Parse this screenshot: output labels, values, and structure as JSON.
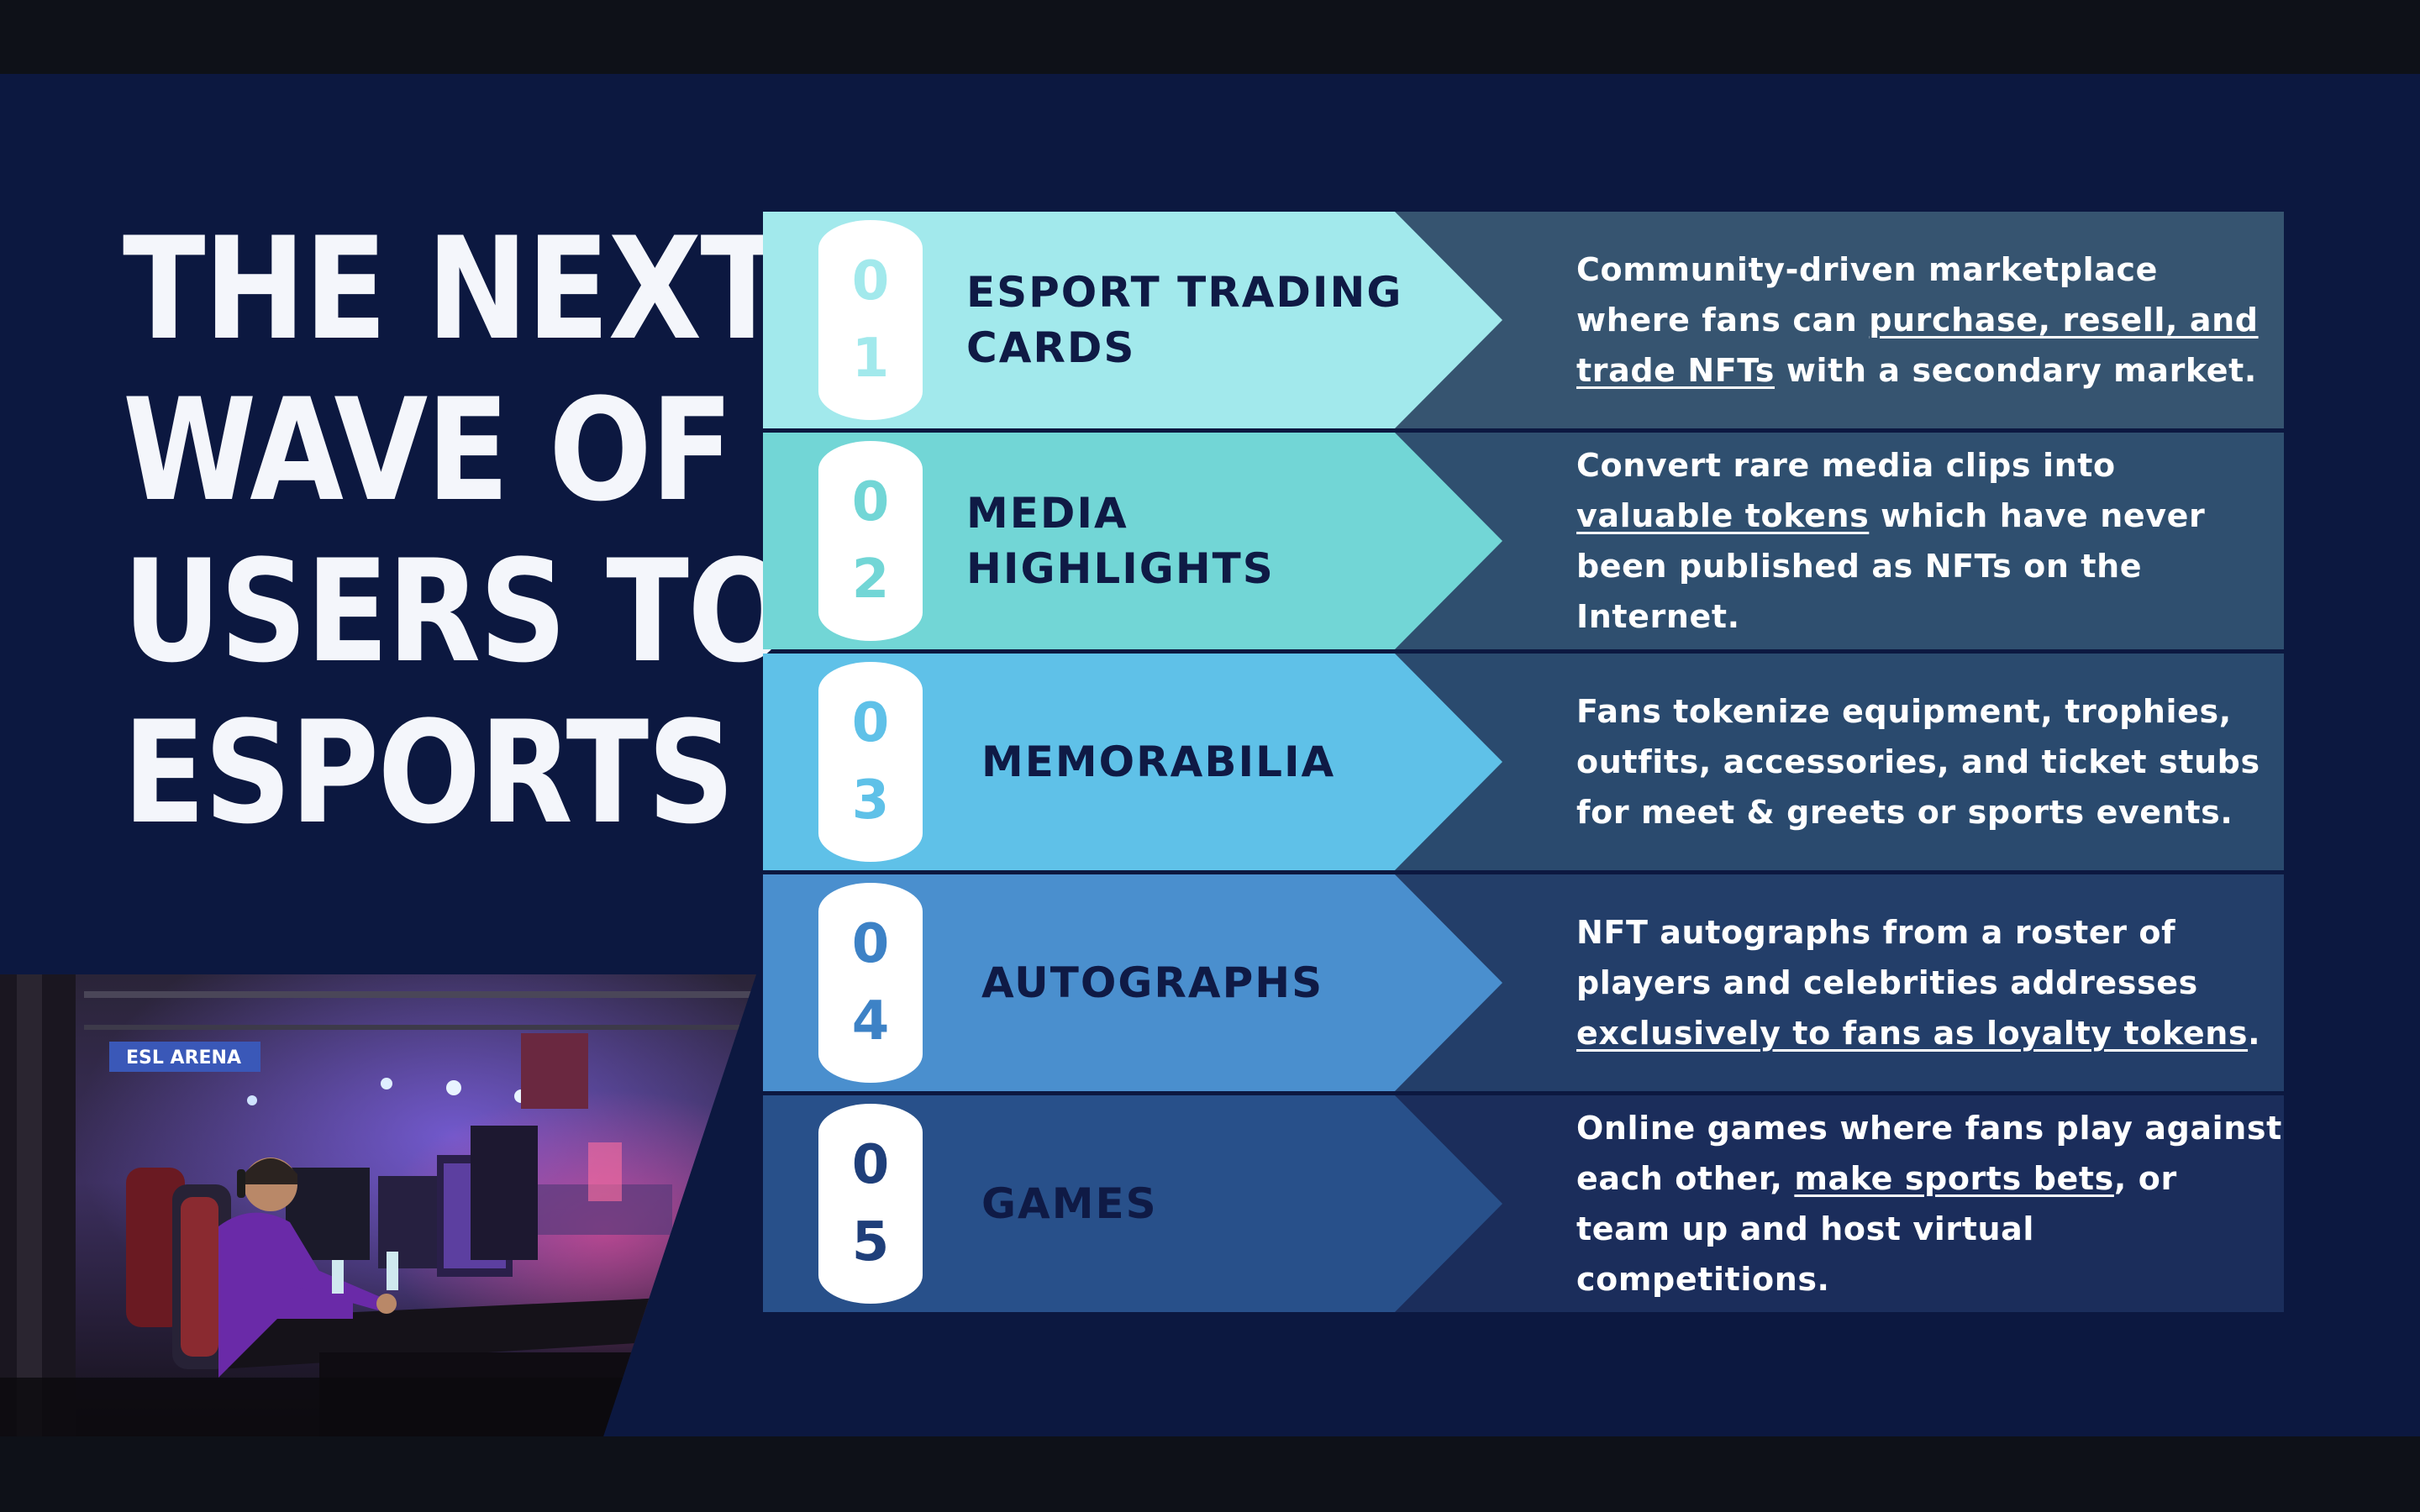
{
  "title_lines": [
    "THE NEXT",
    "WAVE OF",
    "USERS TO",
    "ESPORTS"
  ],
  "colors": {
    "background": "#0c1840",
    "row1_left": "#a2e9ec",
    "row1_right": "#365470",
    "row1_num": "#a2e9ec",
    "row2_left": "#72d6d6",
    "row2_right": "#2f4f6f",
    "row2_num": "#72d6d6",
    "row3_left": "#5fc1e8",
    "row3_right": "#2a4a6e",
    "row3_num": "#5fc1e8",
    "row4_left": "#4a8fce",
    "row4_right": "#233e69",
    "row4_num": "#3d82c6",
    "row5_left": "#28508a",
    "row5_right": "#1b2d5b",
    "row5_num": "#1f3f7a"
  },
  "photo": {
    "icon": "esports-gamer-photo",
    "sign_text": "ESL ARENA"
  },
  "rows": [
    {
      "digits": [
        "0",
        "1"
      ],
      "label": "ESPORT TRADING CARDS",
      "desc": [
        {
          "t": "Community-driven marketplace where fans can "
        },
        {
          "t": "purchase, resell, and trade NFTs",
          "u": true
        },
        {
          "t": " with a secondary market."
        }
      ]
    },
    {
      "digits": [
        "0",
        "2"
      ],
      "label": "MEDIA HIGHLIGHTS",
      "desc": [
        {
          "t": "Convert rare media clips into "
        },
        {
          "t": "valuable tokens",
          "u": true
        },
        {
          "t": " which have never been published as NFTs on the Internet."
        }
      ]
    },
    {
      "digits": [
        "0",
        "3"
      ],
      "label": "MEMORABILIA",
      "desc": [
        {
          "t": "Fans tokenize equipment, trophies, outfits, accessories, and ticket stubs for meet & greets or sports events."
        }
      ]
    },
    {
      "digits": [
        "0",
        "4"
      ],
      "label": "AUTOGRAPHS",
      "desc": [
        {
          "t": "NFT autographs from a roster of players and celebrities addresses "
        },
        {
          "t": "exclusively to fans as loyalty tokens",
          "u": true
        },
        {
          "t": "."
        }
      ]
    },
    {
      "digits": [
        "0",
        "5"
      ],
      "label": "GAMES",
      "desc": [
        {
          "t": "Online games where fans play against each other, "
        },
        {
          "t": "make sports bets",
          "u": true
        },
        {
          "t": ", or team up and host virtual competitions."
        }
      ]
    }
  ]
}
